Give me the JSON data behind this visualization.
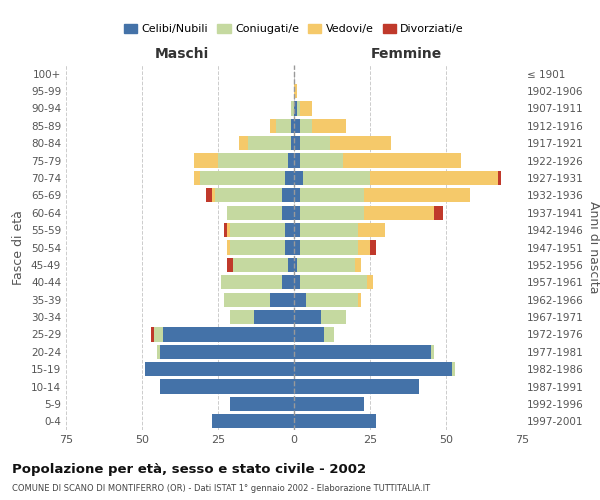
{
  "age_groups": [
    "0-4",
    "5-9",
    "10-14",
    "15-19",
    "20-24",
    "25-29",
    "30-34",
    "35-39",
    "40-44",
    "45-49",
    "50-54",
    "55-59",
    "60-64",
    "65-69",
    "70-74",
    "75-79",
    "80-84",
    "85-89",
    "90-94",
    "95-99",
    "100+"
  ],
  "birth_years": [
    "1997-2001",
    "1992-1996",
    "1987-1991",
    "1982-1986",
    "1977-1981",
    "1972-1976",
    "1967-1971",
    "1962-1966",
    "1957-1961",
    "1952-1956",
    "1947-1951",
    "1942-1946",
    "1937-1941",
    "1932-1936",
    "1927-1931",
    "1922-1926",
    "1917-1921",
    "1912-1916",
    "1907-1911",
    "1902-1906",
    "≤ 1901"
  ],
  "males": {
    "celibi": [
      27,
      21,
      44,
      49,
      44,
      43,
      13,
      8,
      4,
      2,
      3,
      3,
      4,
      4,
      3,
      2,
      1,
      1,
      0,
      0,
      0
    ],
    "coniugati": [
      0,
      0,
      0,
      0,
      1,
      3,
      8,
      15,
      20,
      18,
      18,
      18,
      18,
      22,
      28,
      23,
      14,
      5,
      1,
      0,
      0
    ],
    "vedovi": [
      0,
      0,
      0,
      0,
      0,
      0,
      0,
      0,
      0,
      0,
      1,
      1,
      0,
      1,
      2,
      8,
      3,
      2,
      0,
      0,
      0
    ],
    "divorziati": [
      0,
      0,
      0,
      0,
      0,
      1,
      0,
      0,
      0,
      2,
      0,
      1,
      0,
      2,
      0,
      0,
      0,
      0,
      0,
      0,
      0
    ]
  },
  "females": {
    "nubili": [
      27,
      23,
      41,
      52,
      45,
      10,
      9,
      4,
      2,
      1,
      2,
      2,
      2,
      2,
      3,
      2,
      2,
      2,
      1,
      0,
      0
    ],
    "coniugate": [
      0,
      0,
      0,
      1,
      1,
      3,
      8,
      17,
      22,
      19,
      19,
      19,
      21,
      21,
      22,
      14,
      10,
      4,
      1,
      0,
      0
    ],
    "vedove": [
      0,
      0,
      0,
      0,
      0,
      0,
      0,
      1,
      2,
      2,
      4,
      9,
      23,
      35,
      42,
      39,
      20,
      11,
      4,
      1,
      0
    ],
    "divorziate": [
      0,
      0,
      0,
      0,
      0,
      0,
      0,
      0,
      0,
      0,
      2,
      0,
      3,
      0,
      1,
      0,
      0,
      0,
      0,
      0,
      0
    ]
  },
  "colors": {
    "celibi_nubili": "#4472a8",
    "coniugati": "#c5d9a0",
    "vedovi": "#f5c96a",
    "divorziati": "#c0392b"
  },
  "xlim": 75,
  "title": "Popolazione per età, sesso e stato civile - 2002",
  "subtitle": "COMUNE DI SCANO DI MONTIFERRO (OR) - Dati ISTAT 1° gennaio 2002 - Elaborazione TUTTITALIA.IT",
  "ylabel_left": "Fasce di età",
  "ylabel_right": "Anni di nascita",
  "xlabel_males": "Maschi",
  "xlabel_females": "Femmine",
  "bg_color": "#ffffff",
  "grid_color": "#cccccc"
}
